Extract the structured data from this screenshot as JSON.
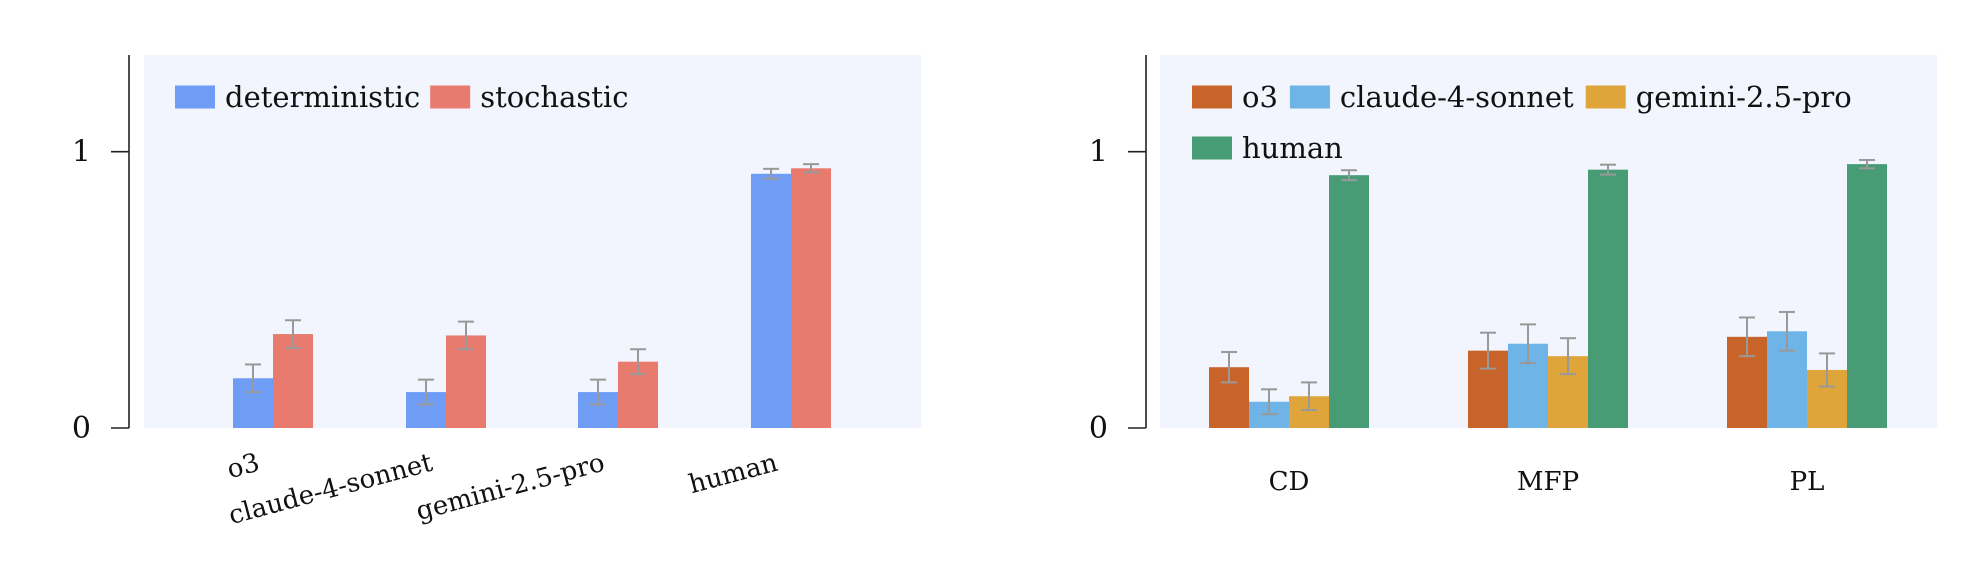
{
  "chart_data": [
    {
      "type": "bar",
      "title": "",
      "xlabel": "",
      "ylabel": "",
      "ylim": [
        0,
        1.35
      ],
      "yticks": [
        0,
        1
      ],
      "ytick_labels": [
        "0",
        "1"
      ],
      "grid": false,
      "legend_position": "top-left",
      "categories": [
        "o3",
        "claude-4-sonnet",
        "gemini-2.5-pro",
        "human"
      ],
      "series": [
        {
          "name": "deterministic",
          "color": "#6f9cf5",
          "values": [
            0.18,
            0.13,
            0.13,
            0.92
          ],
          "errors": [
            0.05,
            0.045,
            0.045,
            0.018
          ]
        },
        {
          "name": "stochastic",
          "color": "#e87b6e",
          "values": [
            0.34,
            0.335,
            0.24,
            0.94
          ],
          "errors": [
            0.05,
            0.05,
            0.045,
            0.015
          ]
        }
      ]
    },
    {
      "type": "bar",
      "title": "",
      "xlabel": "",
      "ylabel": "",
      "ylim": [
        0,
        1.35
      ],
      "yticks": [
        0,
        1
      ],
      "ytick_labels": [
        "0",
        "1"
      ],
      "grid": false,
      "legend_position": "top-left",
      "categories": [
        "CD",
        "MFP",
        "PL"
      ],
      "series": [
        {
          "name": "o3",
          "color": "#c8632a",
          "values": [
            0.22,
            0.28,
            0.33
          ],
          "errors": [
            0.055,
            0.065,
            0.07
          ]
        },
        {
          "name": "claude-4-sonnet",
          "color": "#6fb4e6",
          "values": [
            0.095,
            0.305,
            0.35
          ],
          "errors": [
            0.045,
            0.07,
            0.07
          ]
        },
        {
          "name": "gemini-2.5-pro",
          "color": "#e0a53a",
          "values": [
            0.115,
            0.26,
            0.21
          ],
          "errors": [
            0.05,
            0.065,
            0.06
          ]
        },
        {
          "name": "human",
          "color": "#479c76",
          "values": [
            0.915,
            0.935,
            0.955
          ],
          "errors": [
            0.018,
            0.018,
            0.015
          ]
        }
      ]
    }
  ]
}
